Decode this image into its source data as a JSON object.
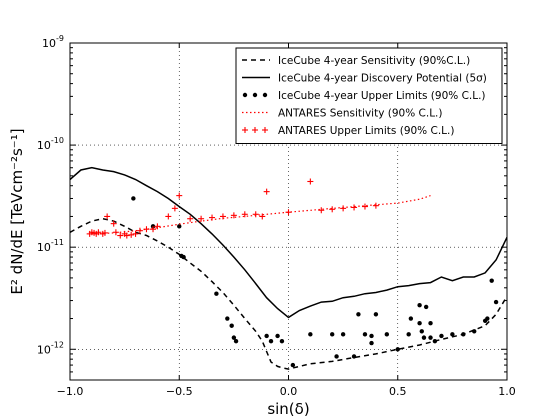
{
  "chart_data": {
    "type": "line",
    "xlabel": "sin(δ)",
    "ylabel": "E² dN/dE [TeVcm⁻²s⁻¹]",
    "xlim": [
      -1.0,
      1.0
    ],
    "ylim": [
      5e-13,
      1e-09
    ],
    "yscale": "log",
    "grid": true,
    "legend_position": "top-right",
    "x_tick_labels": [
      "−1.0",
      "−0.5",
      "0.0",
      "0.5",
      "1.0"
    ],
    "y_tick_labels": [
      {
        "base": "10",
        "exp": "-9",
        "value": 1e-09
      },
      {
        "base": "10",
        "exp": "-10",
        "value": 1e-10
      },
      {
        "base": "10",
        "exp": "-11",
        "value": 1e-11
      },
      {
        "base": "10",
        "exp": "-12",
        "value": 1e-12
      }
    ],
    "series": [
      {
        "name": "IceCube 4-year Sensitivity (90%C.L.)",
        "style": "dashed",
        "color": "#000000",
        "x": [
          -1.0,
          -0.95,
          -0.9,
          -0.85,
          -0.8,
          -0.75,
          -0.7,
          -0.65,
          -0.6,
          -0.55,
          -0.5,
          -0.45,
          -0.4,
          -0.35,
          -0.3,
          -0.25,
          -0.2,
          -0.15,
          -0.12,
          -0.1,
          -0.08,
          -0.05,
          -0.03,
          0.0,
          0.05,
          0.1,
          0.2,
          0.3,
          0.4,
          0.5,
          0.6,
          0.7,
          0.8,
          0.9,
          0.95,
          1.0
        ],
        "y": [
          1.4e-11,
          1.6e-11,
          1.8e-11,
          1.9e-11,
          1.8e-11,
          1.6e-11,
          1.4e-11,
          1.3e-11,
          1.15e-11,
          1e-11,
          8.5e-12,
          7e-12,
          5.8e-12,
          4.6e-12,
          3.6e-12,
          2.7e-12,
          2e-12,
          1.5e-12,
          1.2e-12,
          9.5e-13,
          7.5e-13,
          6.8e-13,
          6.6e-13,
          6.4e-13,
          6.8e-13,
          7.2e-13,
          7.6e-13,
          8.3e-13,
          9e-13,
          1e-12,
          1.1e-12,
          1.25e-12,
          1.4e-12,
          1.7e-12,
          2.2e-12,
          3.3e-12
        ]
      },
      {
        "name": "IceCube 4-year Discovery Potential (5σ)",
        "style": "solid",
        "color": "#000000",
        "x": [
          -1.0,
          -0.95,
          -0.9,
          -0.85,
          -0.8,
          -0.75,
          -0.7,
          -0.65,
          -0.6,
          -0.55,
          -0.5,
          -0.45,
          -0.4,
          -0.35,
          -0.3,
          -0.25,
          -0.2,
          -0.15,
          -0.1,
          -0.05,
          0.0,
          0.05,
          0.1,
          0.15,
          0.2,
          0.25,
          0.3,
          0.35,
          0.4,
          0.45,
          0.5,
          0.55,
          0.6,
          0.65,
          0.7,
          0.75,
          0.8,
          0.85,
          0.9,
          0.95,
          1.0
        ],
        "y": [
          4.6e-11,
          5.7e-11,
          6e-11,
          5.7e-11,
          5.5e-11,
          5.1e-11,
          4.6e-11,
          4e-11,
          3.5e-11,
          3e-11,
          2.5e-11,
          2.1e-11,
          1.7e-11,
          1.35e-11,
          1.05e-11,
          8e-12,
          6e-12,
          4.4e-12,
          3.2e-12,
          2.5e-12,
          2.05e-12,
          2.4e-12,
          2.65e-12,
          2.9e-12,
          2.95e-12,
          3.2e-12,
          3.3e-12,
          3.5e-12,
          3.6e-12,
          3.8e-12,
          4.1e-12,
          4.2e-12,
          4.4e-12,
          4.5e-12,
          5.1e-12,
          4.7e-12,
          5.1e-12,
          5.1e-12,
          5.6e-12,
          7.5e-12,
          1.25e-11
        ]
      },
      {
        "name": "IceCube 4-year Upper Limits (90% C.L.)",
        "style": "dots",
        "color": "#000000",
        "x": [
          -0.71,
          -0.62,
          -0.5,
          -0.49,
          -0.48,
          -0.33,
          -0.28,
          -0.26,
          -0.25,
          -0.24,
          -0.1,
          -0.08,
          -0.05,
          -0.03,
          0.02,
          0.1,
          0.2,
          0.22,
          0.25,
          0.3,
          0.32,
          0.35,
          0.38,
          0.38,
          0.4,
          0.45,
          0.5,
          0.55,
          0.56,
          0.6,
          0.6,
          0.61,
          0.62,
          0.63,
          0.65,
          0.65,
          0.67,
          0.7,
          0.75,
          0.8,
          0.85,
          0.9,
          0.91,
          0.93,
          0.95
        ],
        "y": [
          3e-11,
          1.6e-11,
          1.6e-11,
          8.2e-12,
          8e-12,
          3.5e-12,
          2e-12,
          1.7e-12,
          1.3e-12,
          1.2e-12,
          1.35e-12,
          1.2e-12,
          1.35e-12,
          1.2e-12,
          7e-13,
          1.4e-12,
          1.4e-12,
          8.5e-13,
          1.4e-12,
          8.5e-13,
          2.2e-12,
          1.4e-12,
          1.35e-12,
          1.15e-12,
          2.2e-12,
          1.4e-12,
          1e-12,
          1.4e-12,
          2e-12,
          2.7e-12,
          1.8e-12,
          1.5e-12,
          1.3e-12,
          2.6e-12,
          1.8e-12,
          1.3e-12,
          1.2e-12,
          1.35e-12,
          1.4e-12,
          1.4e-12,
          1.5e-12,
          1.9e-12,
          2e-12,
          4.7e-12,
          2.9e-12
        ]
      },
      {
        "name": "ANTARES Sensitivity (90% C.L.)",
        "style": "dotted",
        "color": "#ff0000",
        "x": [
          -0.9,
          -0.8,
          -0.7,
          -0.6,
          -0.5,
          -0.4,
          -0.3,
          -0.2,
          -0.1,
          0.0,
          0.1,
          0.2,
          0.3,
          0.4,
          0.5,
          0.6,
          0.65
        ],
        "y": [
          1.35e-11,
          1.38e-11,
          1.45e-11,
          1.55e-11,
          1.68e-11,
          1.8e-11,
          1.92e-11,
          2e-11,
          2.1e-11,
          2.2e-11,
          2.3e-11,
          2.4e-11,
          2.5e-11,
          2.6e-11,
          2.7e-11,
          2.95e-11,
          3.2e-11
        ]
      },
      {
        "name": "ANTARES Upper Limits (90% C.L.)",
        "style": "plus",
        "color": "#ff0000",
        "x": [
          -0.91,
          -0.9,
          -0.89,
          -0.88,
          -0.87,
          -0.85,
          -0.84,
          -0.83,
          -0.8,
          -0.79,
          -0.77,
          -0.75,
          -0.74,
          -0.72,
          -0.7,
          -0.68,
          -0.65,
          -0.62,
          -0.6,
          -0.55,
          -0.52,
          -0.5,
          -0.45,
          -0.4,
          -0.35,
          -0.3,
          -0.25,
          -0.2,
          -0.15,
          -0.12,
          -0.1,
          0.0,
          0.1,
          0.15,
          0.2,
          0.25,
          0.3,
          0.35,
          0.4
        ],
        "y": [
          1.35e-11,
          1.4e-11,
          1.38e-11,
          1.35e-11,
          1.4e-11,
          1.35e-11,
          1.38e-11,
          2e-11,
          1.7e-11,
          1.4e-11,
          1.3e-11,
          1.35e-11,
          1.3e-11,
          1.32e-11,
          1.35e-11,
          1.45e-11,
          1.5e-11,
          1.5e-11,
          1.6e-11,
          2e-11,
          2.4e-11,
          3.2e-11,
          1.9e-11,
          1.9e-11,
          1.95e-11,
          2e-11,
          2.05e-11,
          2.1e-11,
          2.1e-11,
          2e-11,
          3.5e-11,
          2.2e-11,
          4.4e-11,
          2.3e-11,
          2.35e-11,
          2.4e-11,
          2.45e-11,
          2.5e-11,
          2.55e-11
        ]
      }
    ]
  }
}
